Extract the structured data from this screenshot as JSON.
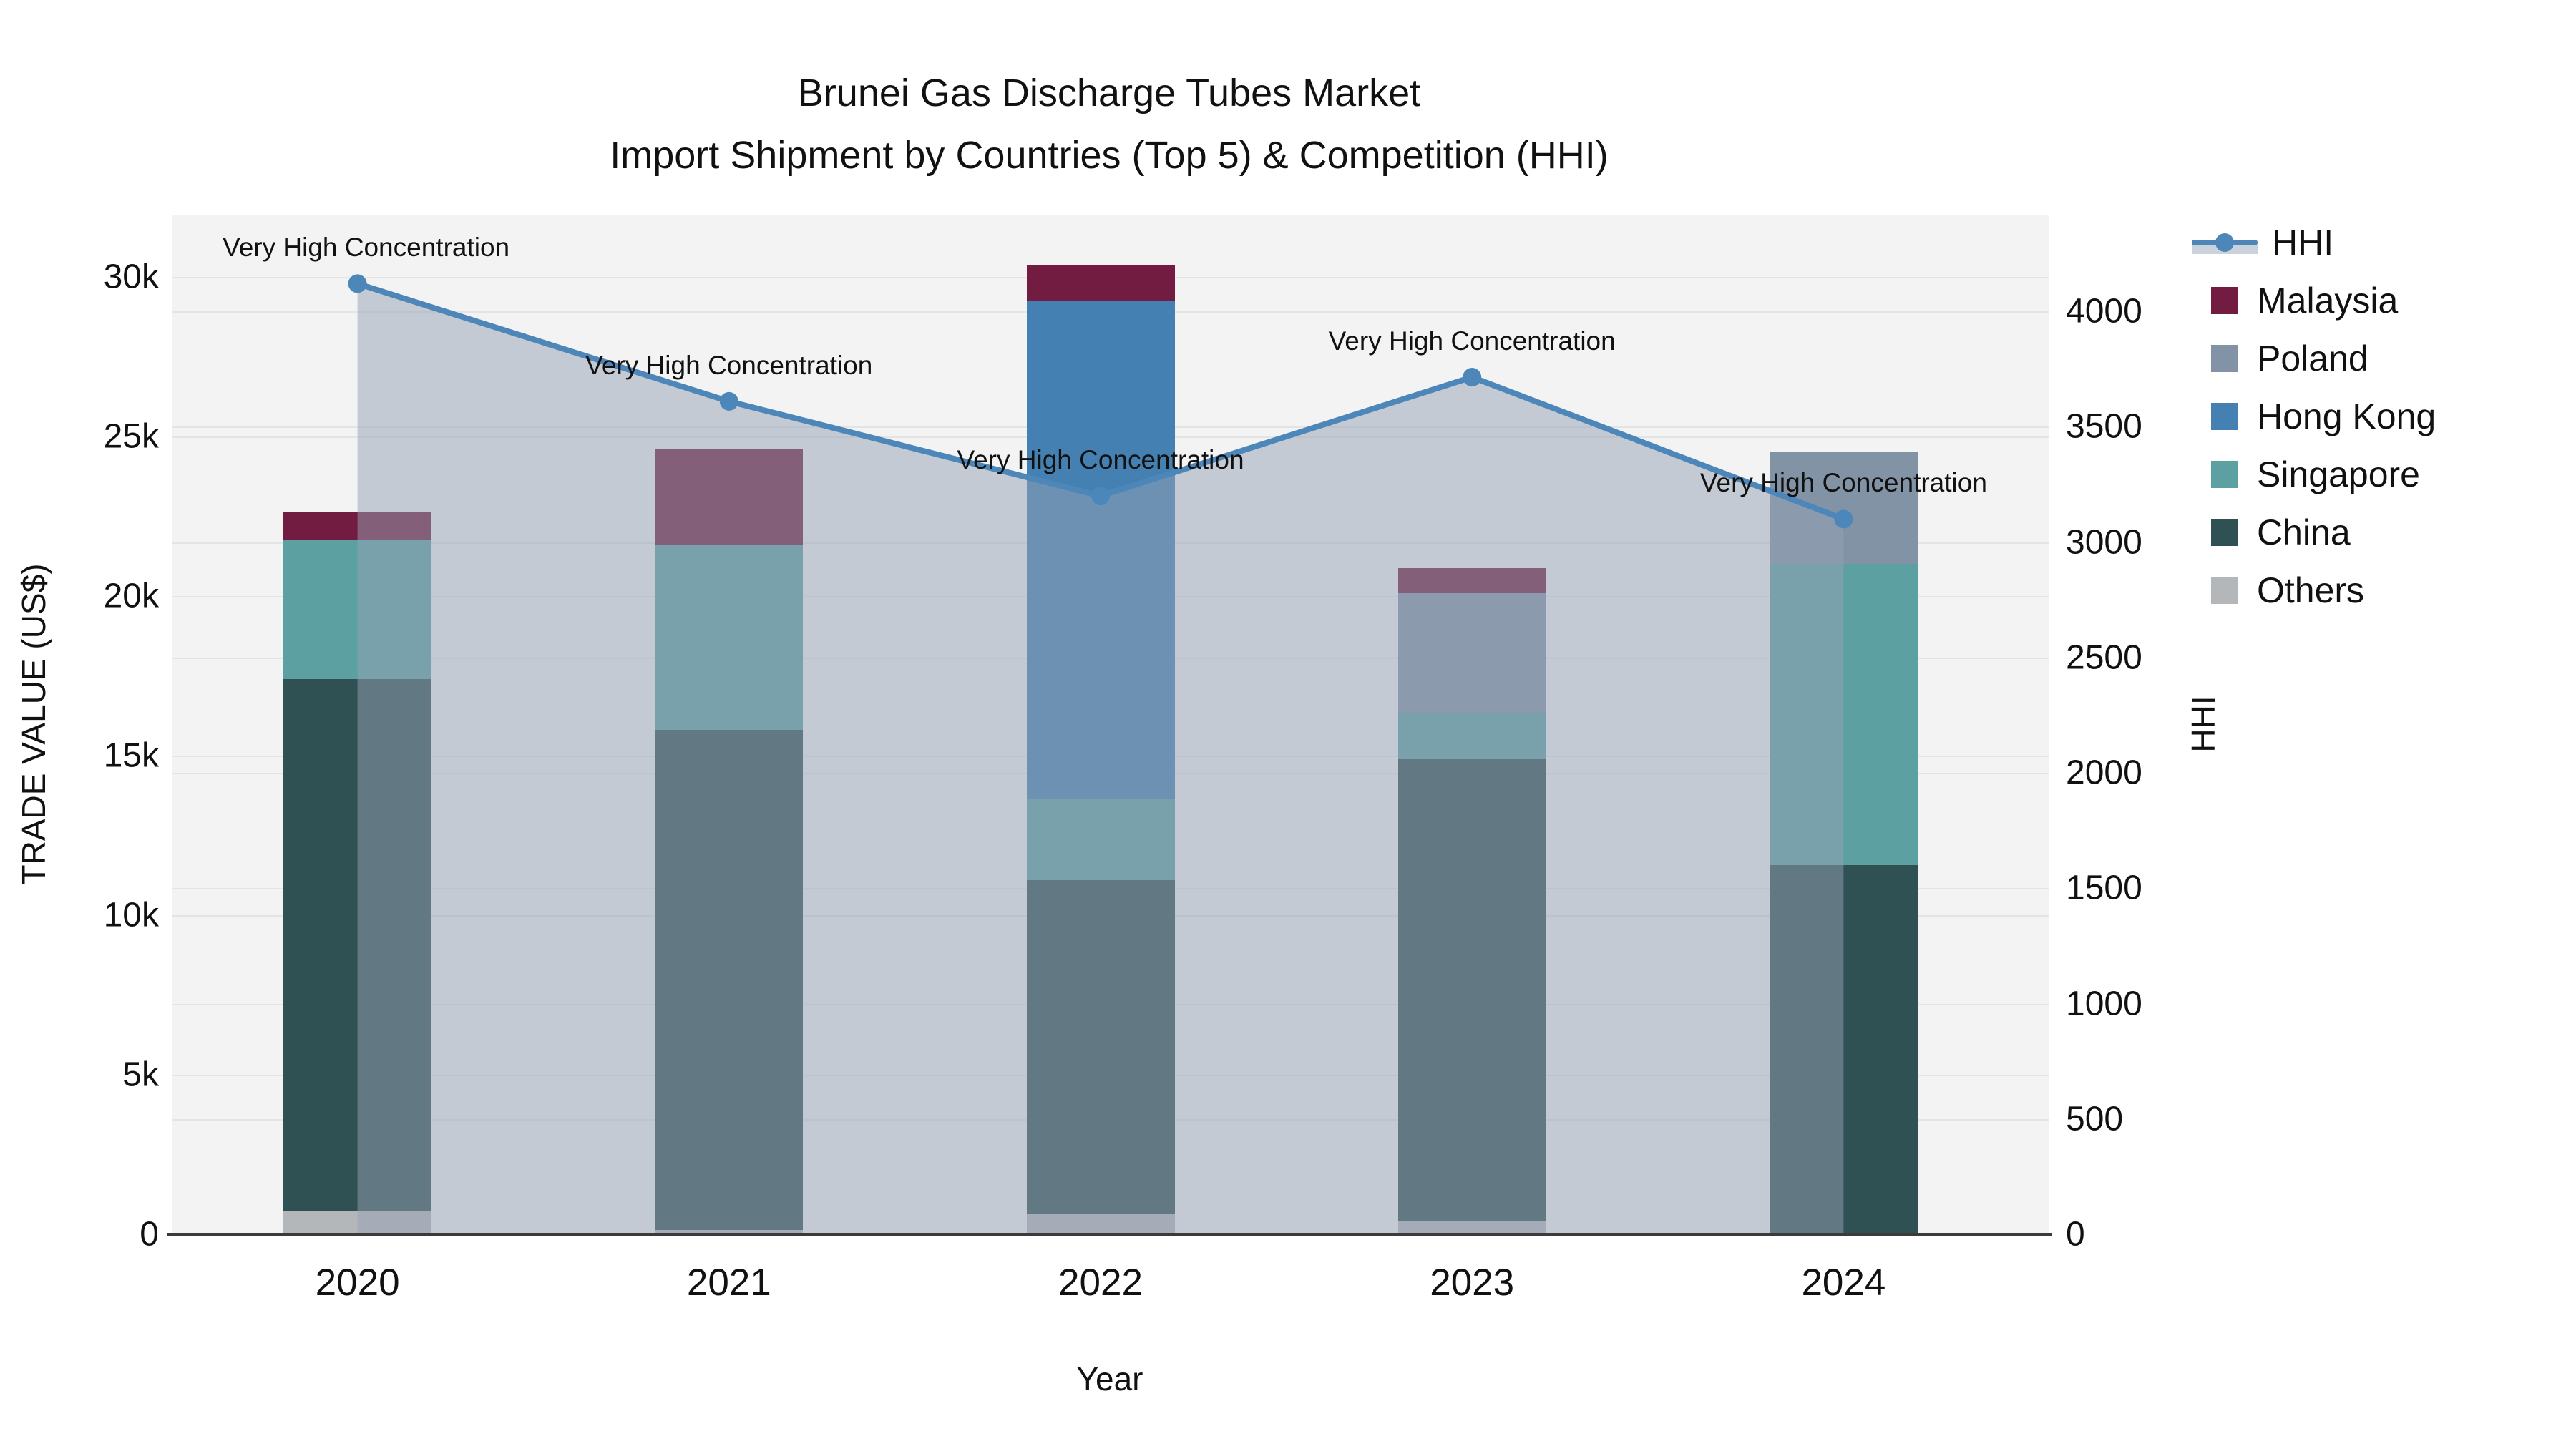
{
  "title": {
    "line1": "Brunei Gas Discharge Tubes Market",
    "line2": "Import Shipment by Countries (Top 5) & Competition (HHI)"
  },
  "axes": {
    "y_left": {
      "label": "TRADE VALUE (US$)",
      "tick_labels": [
        "0",
        "5k",
        "10k",
        "15k",
        "20k",
        "25k",
        "30k"
      ],
      "tick_values": [
        0,
        5000,
        10000,
        15000,
        20000,
        25000,
        30000
      ],
      "max": 31950
    },
    "y_right": {
      "label": "HHI",
      "tick_labels": [
        "0",
        "500",
        "1000",
        "1500",
        "2000",
        "2500",
        "3000",
        "3500",
        "4000"
      ],
      "tick_values": [
        0,
        500,
        1000,
        1500,
        2000,
        2500,
        3000,
        3500,
        4000
      ],
      "max": 4419
    },
    "x": {
      "label": "Year"
    }
  },
  "chart_data": {
    "type": "bar",
    "subtype": "stacked-bars-with-hhi-line",
    "categories": [
      "2020",
      "2021",
      "2022",
      "2023",
      "2024"
    ],
    "bar_value_unit": "US$",
    "series": [
      {
        "name": "Others",
        "color": "#b4b7ba",
        "values": [
          710,
          130,
          650,
          410,
          0
        ]
      },
      {
        "name": "China",
        "color": "#2f5153",
        "values": [
          16690,
          15670,
          10450,
          14480,
          11570
        ]
      },
      {
        "name": "Singapore",
        "color": "#5ca0a2",
        "values": [
          4340,
          5820,
          2540,
          1440,
          9440
        ]
      },
      {
        "name": "Hong Kong",
        "color": "#4480b2",
        "values": [
          0,
          0,
          15620,
          0,
          0
        ]
      },
      {
        "name": "Poland",
        "color": "#8293a6",
        "values": [
          0,
          0,
          0,
          3760,
          3500
        ]
      },
      {
        "name": "Malaysia",
        "color": "#721c41",
        "values": [
          890,
          2970,
          1110,
          780,
          0
        ]
      }
    ],
    "bar_totals": [
      22630,
      24590,
      30370,
      20870,
      24510
    ],
    "line_series": {
      "name": "HHI",
      "color": "#4d86b8",
      "area_fill": "rgba(150,161,180,0.5)",
      "values": [
        4120,
        3610,
        3200,
        3715,
        3100
      ]
    },
    "annotations": [
      {
        "year": "2020",
        "text": "Very High Concentration"
      },
      {
        "year": "2021",
        "text": "Very High Concentration"
      },
      {
        "year": "2022",
        "text": "Very High Concentration"
      },
      {
        "year": "2023",
        "text": "Very High Concentration"
      },
      {
        "year": "2024",
        "text": "Very High Concentration"
      }
    ],
    "legend_position": "right",
    "grid": true
  },
  "legend": {
    "items": [
      {
        "label": "HHI",
        "key": "line"
      },
      {
        "label": "Malaysia",
        "key": "swatch",
        "color": "#721c41"
      },
      {
        "label": "Poland",
        "key": "swatch",
        "color": "#8293a6"
      },
      {
        "label": "Hong Kong",
        "key": "swatch",
        "color": "#4480b2"
      },
      {
        "label": "Singapore",
        "key": "swatch",
        "color": "#5ca0a2"
      },
      {
        "label": "China",
        "key": "swatch",
        "color": "#2f5153"
      },
      {
        "label": "Others",
        "key": "swatch",
        "color": "#b4b7ba"
      }
    ]
  }
}
